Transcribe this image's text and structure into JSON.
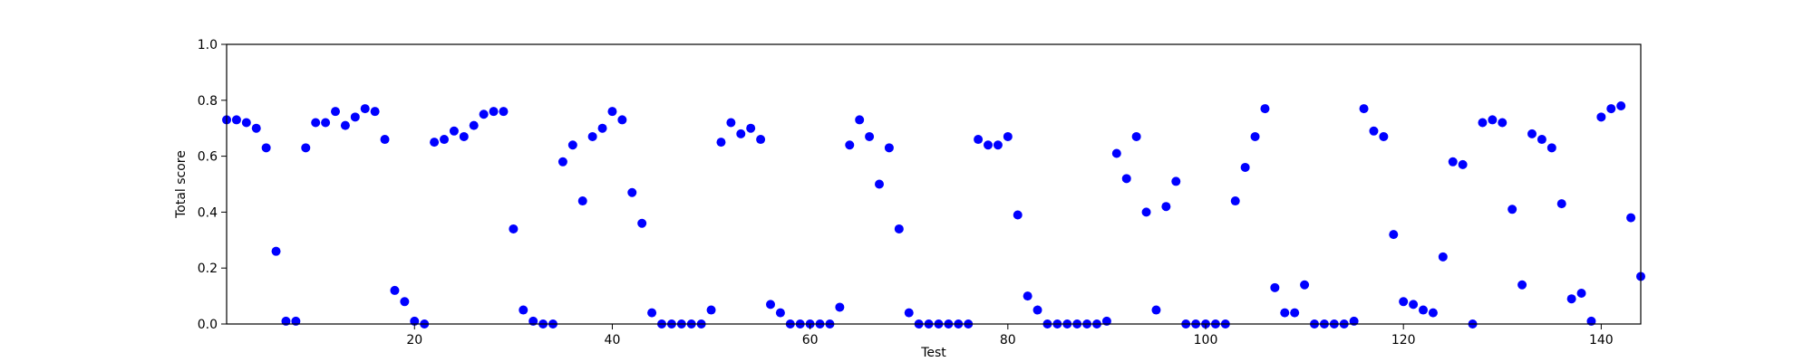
{
  "chart_data": {
    "type": "scatter",
    "title": "",
    "xlabel": "Test",
    "ylabel": "Total score",
    "xlim": [
      1,
      144
    ],
    "ylim": [
      0,
      1
    ],
    "grid": false,
    "legend": "none",
    "marker_color": "#0000ff",
    "x_ticks": [
      20,
      40,
      60,
      80,
      100,
      120,
      140
    ],
    "y_ticks": [
      0.0,
      0.2,
      0.4,
      0.6,
      0.8,
      1.0
    ],
    "y_tick_labels": [
      "0.0",
      "0.2",
      "0.4",
      "0.6",
      "0.8",
      "1.0"
    ],
    "points": [
      [
        1,
        0.73
      ],
      [
        2,
        0.73
      ],
      [
        3,
        0.72
      ],
      [
        4,
        0.7
      ],
      [
        5,
        0.63
      ],
      [
        6,
        0.26
      ],
      [
        7,
        0.01
      ],
      [
        8,
        0.01
      ],
      [
        9,
        0.63
      ],
      [
        10,
        0.72
      ],
      [
        11,
        0.72
      ],
      [
        12,
        0.76
      ],
      [
        13,
        0.71
      ],
      [
        14,
        0.74
      ],
      [
        15,
        0.77
      ],
      [
        16,
        0.76
      ],
      [
        17,
        0.66
      ],
      [
        18,
        0.12
      ],
      [
        19,
        0.08
      ],
      [
        20,
        0.01
      ],
      [
        21,
        0.0
      ],
      [
        22,
        0.65
      ],
      [
        23,
        0.66
      ],
      [
        24,
        0.69
      ],
      [
        25,
        0.67
      ],
      [
        26,
        0.71
      ],
      [
        27,
        0.75
      ],
      [
        28,
        0.76
      ],
      [
        29,
        0.76
      ],
      [
        30,
        0.34
      ],
      [
        31,
        0.05
      ],
      [
        32,
        0.01
      ],
      [
        33,
        0.0
      ],
      [
        34,
        0.0
      ],
      [
        35,
        0.58
      ],
      [
        36,
        0.64
      ],
      [
        37,
        0.44
      ],
      [
        38,
        0.67
      ],
      [
        39,
        0.7
      ],
      [
        40,
        0.76
      ],
      [
        41,
        0.73
      ],
      [
        42,
        0.47
      ],
      [
        43,
        0.36
      ],
      [
        44,
        0.04
      ],
      [
        45,
        0.0
      ],
      [
        46,
        0.0
      ],
      [
        47,
        0.0
      ],
      [
        48,
        0.0
      ],
      [
        49,
        0.0
      ],
      [
        50,
        0.05
      ],
      [
        51,
        0.65
      ],
      [
        52,
        0.72
      ],
      [
        53,
        0.68
      ],
      [
        54,
        0.7
      ],
      [
        55,
        0.66
      ],
      [
        56,
        0.07
      ],
      [
        57,
        0.04
      ],
      [
        58,
        0.0
      ],
      [
        59,
        0.0
      ],
      [
        60,
        0.0
      ],
      [
        61,
        0.0
      ],
      [
        62,
        0.0
      ],
      [
        63,
        0.06
      ],
      [
        64,
        0.64
      ],
      [
        65,
        0.73
      ],
      [
        66,
        0.67
      ],
      [
        67,
        0.5
      ],
      [
        68,
        0.63
      ],
      [
        69,
        0.34
      ],
      [
        70,
        0.04
      ],
      [
        71,
        0.0
      ],
      [
        72,
        0.0
      ],
      [
        73,
        0.0
      ],
      [
        74,
        0.0
      ],
      [
        75,
        0.0
      ],
      [
        76,
        0.0
      ],
      [
        77,
        0.66
      ],
      [
        78,
        0.64
      ],
      [
        79,
        0.64
      ],
      [
        80,
        0.67
      ],
      [
        81,
        0.39
      ],
      [
        82,
        0.1
      ],
      [
        83,
        0.05
      ],
      [
        84,
        0.0
      ],
      [
        85,
        0.0
      ],
      [
        86,
        0.0
      ],
      [
        87,
        0.0
      ],
      [
        88,
        0.0
      ],
      [
        89,
        0.0
      ],
      [
        90,
        0.01
      ],
      [
        91,
        0.61
      ],
      [
        92,
        0.52
      ],
      [
        93,
        0.67
      ],
      [
        94,
        0.4
      ],
      [
        95,
        0.05
      ],
      [
        96,
        0.42
      ],
      [
        97,
        0.51
      ],
      [
        98,
        0.0
      ],
      [
        99,
        0.0
      ],
      [
        100,
        0.0
      ],
      [
        101,
        0.0
      ],
      [
        102,
        0.0
      ],
      [
        103,
        0.44
      ],
      [
        104,
        0.56
      ],
      [
        105,
        0.67
      ],
      [
        106,
        0.77
      ],
      [
        107,
        0.13
      ],
      [
        108,
        0.04
      ],
      [
        109,
        0.04
      ],
      [
        110,
        0.14
      ],
      [
        111,
        0.0
      ],
      [
        112,
        0.0
      ],
      [
        113,
        0.0
      ],
      [
        114,
        0.0
      ],
      [
        115,
        0.01
      ],
      [
        116,
        0.77
      ],
      [
        117,
        0.69
      ],
      [
        118,
        0.67
      ],
      [
        119,
        0.32
      ],
      [
        120,
        0.08
      ],
      [
        121,
        0.07
      ],
      [
        122,
        0.05
      ],
      [
        123,
        0.04
      ],
      [
        124,
        0.24
      ],
      [
        125,
        0.58
      ],
      [
        126,
        0.57
      ],
      [
        127,
        0.0
      ],
      [
        128,
        0.72
      ],
      [
        129,
        0.73
      ],
      [
        130,
        0.72
      ],
      [
        131,
        0.41
      ],
      [
        132,
        0.14
      ],
      [
        133,
        0.68
      ],
      [
        134,
        0.66
      ],
      [
        135,
        0.63
      ],
      [
        136,
        0.43
      ],
      [
        137,
        0.09
      ],
      [
        138,
        0.11
      ],
      [
        139,
        0.01
      ],
      [
        140,
        0.74
      ],
      [
        141,
        0.77
      ],
      [
        142,
        0.78
      ],
      [
        143,
        0.38
      ],
      [
        144,
        0.17
      ]
    ]
  }
}
